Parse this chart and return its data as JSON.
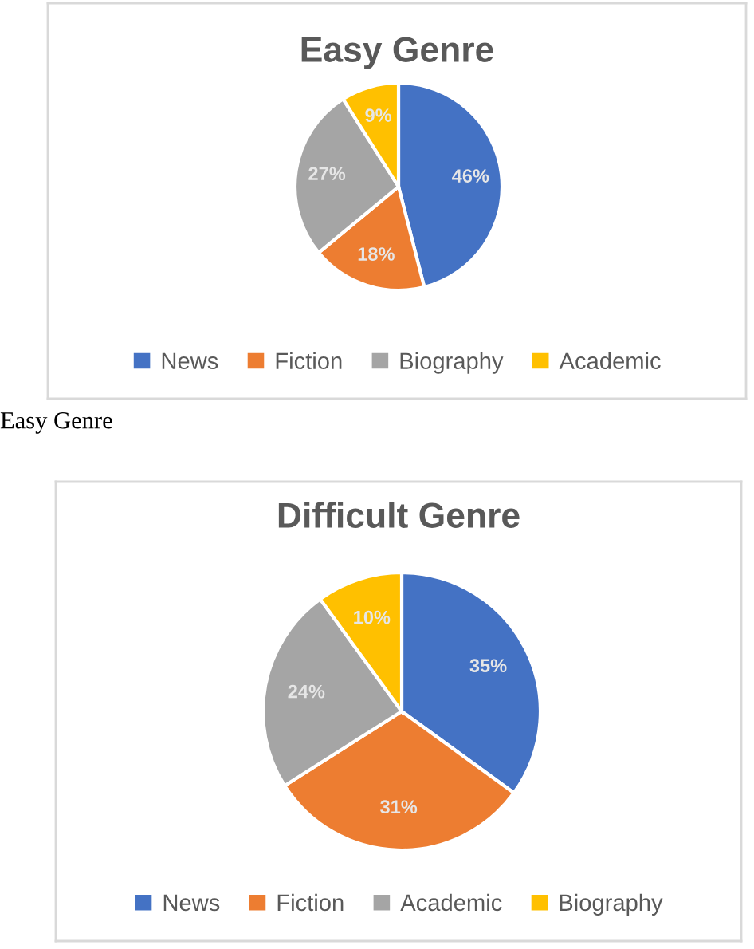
{
  "chart_data": [
    {
      "type": "pie",
      "title": "Easy Genre",
      "categories": [
        "News",
        "Fiction",
        "Biography",
        "Academic"
      ],
      "values": [
        46,
        18,
        27,
        9
      ],
      "value_labels": [
        "46%",
        "18%",
        "27%",
        "9%"
      ],
      "colors": [
        "#4472c4",
        "#ed7d31",
        "#a5a5a5",
        "#ffc000"
      ],
      "legend": "bottom",
      "annotations": [
        "Easy Genre"
      ]
    },
    {
      "type": "pie",
      "title": "Difficult Genre",
      "categories": [
        "News",
        "Fiction",
        "Academic",
        "Biography"
      ],
      "values": [
        35,
        31,
        24,
        10
      ],
      "value_labels": [
        "35%",
        "31%",
        "24%",
        "10%"
      ],
      "colors": [
        "#4472c4",
        "#ed7d31",
        "#a5a5a5",
        "#ffc000"
      ],
      "legend": "bottom"
    }
  ]
}
